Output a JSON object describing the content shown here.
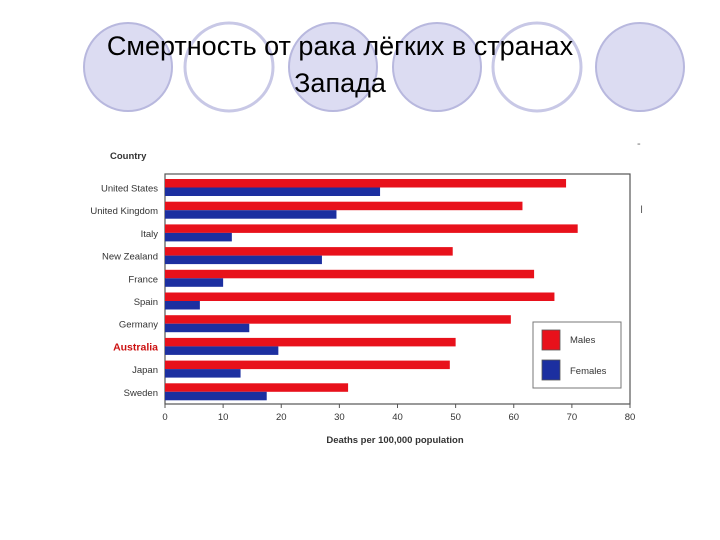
{
  "slide": {
    "title_line1": "Смертность от рака лёгких в странах",
    "title_line2": "Запада"
  },
  "colors": {
    "males": "#e8111b",
    "females": "#1c2fa0",
    "highlight_label": "#cc1111",
    "circle_fill": "#dcdcf2",
    "circle_stroke": "#b8b8de"
  },
  "chart_data": {
    "type": "bar",
    "orientation": "horizontal",
    "title": "",
    "category_axis_title": "Country",
    "xlabel": "Deaths per 100,000 population",
    "xlim": [
      0,
      80
    ],
    "xticks": [
      0,
      10,
      20,
      30,
      40,
      50,
      60,
      70,
      80
    ],
    "categories": [
      "United States",
      "United Kingdom",
      "Italy",
      "New Zealand",
      "France",
      "Spain",
      "Germany",
      "Australia",
      "Japan",
      "Sweden"
    ],
    "highlighted_category": "Australia",
    "series": [
      {
        "name": "Males",
        "color": "#e8111b",
        "values": [
          69,
          61.5,
          71,
          49.5,
          63.5,
          67,
          59.5,
          50,
          49,
          31.5
        ]
      },
      {
        "name": "Females",
        "color": "#1c2fa0",
        "values": [
          37,
          29.5,
          11.5,
          27,
          10,
          6,
          14.5,
          19.5,
          13,
          17.5
        ]
      }
    ],
    "legend_placement": "bottom-right",
    "grid": false
  },
  "stray_marks": [
    "-",
    "I"
  ]
}
